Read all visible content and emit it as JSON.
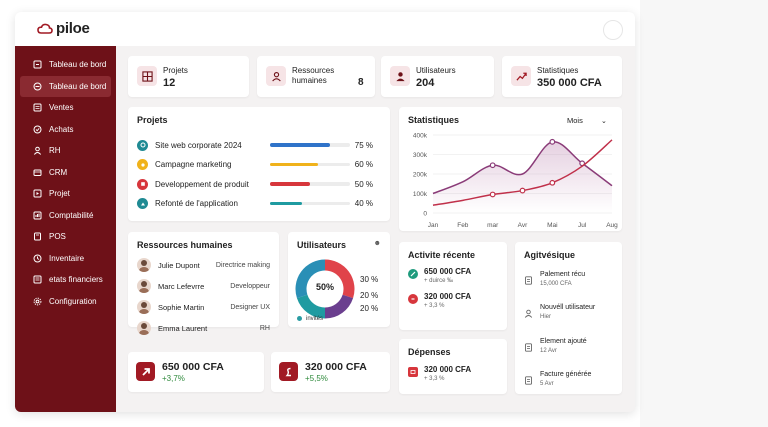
{
  "app": {
    "logo_text": "piloe"
  },
  "sidebar": {
    "items": [
      {
        "label": "Tableau de bord",
        "icon": "dashboard-icon"
      },
      {
        "label": "Tableau de bord",
        "icon": "clock-icon",
        "active": true
      },
      {
        "label": "Ventes",
        "icon": "sales-icon"
      },
      {
        "label": "Achats",
        "icon": "purchase-icon"
      },
      {
        "label": "RH",
        "icon": "user-icon"
      },
      {
        "label": "CRM",
        "icon": "crm-icon"
      },
      {
        "label": "Projet",
        "icon": "project-icon"
      },
      {
        "label": "Comptabilité",
        "icon": "accounting-icon"
      },
      {
        "label": "POS",
        "icon": "pos-icon"
      },
      {
        "label": "Inventaire",
        "icon": "inventory-icon"
      },
      {
        "label": "etats financiers",
        "icon": "reports-icon"
      },
      {
        "label": "Configuration",
        "icon": "gear-icon"
      }
    ]
  },
  "stats": {
    "projets": {
      "label": "Projets",
      "value": "12"
    },
    "rh": {
      "label": "Ressources humaines",
      "value": "8"
    },
    "utilisateurs": {
      "label": "Utilisateurs",
      "value": "204"
    },
    "statistiques": {
      "label": "Statistiques",
      "value": "350 000 CFA"
    }
  },
  "projects": {
    "title": "Projets",
    "items": [
      {
        "name": "Site web corporate 2024",
        "percent": "75 %",
        "progress": 0.75,
        "color": "#2f73c9",
        "icon_bg": "#1f8a93"
      },
      {
        "name": "Campagne marketing",
        "percent": "60 %",
        "progress": 0.6,
        "color": "#f0b21b",
        "icon_bg": "#f0b21b"
      },
      {
        "name": "Developpement de produit",
        "percent": "50 %",
        "progress": 0.5,
        "color": "#d7363c",
        "icon_bg": "#d7363c"
      },
      {
        "name": "Refonté de l'application",
        "percent": "40 %",
        "progress": 0.4,
        "color": "#1f9ba1",
        "icon_bg": "#1f8a93"
      }
    ]
  },
  "statistics_chart": {
    "title": "Statistiques",
    "period": "Mois"
  },
  "chart_data": {
    "type": "line",
    "x": [
      "Jan",
      "Feb",
      "mar",
      "Avr",
      "Mai",
      "Jul",
      "Aug"
    ],
    "yticks": [
      "400k",
      "300k",
      "200k",
      "100k",
      "0"
    ],
    "ylim": [
      0,
      400000
    ],
    "series": [
      {
        "color": "#8a3b78",
        "values": [
          100000,
          160000,
          245000,
          200000,
          365000,
          255000,
          140000
        ]
      },
      {
        "color": "#c0304a",
        "values": [
          40000,
          65000,
          95000,
          115000,
          155000,
          240000,
          375000
        ]
      }
    ],
    "grid": true
  },
  "hr": {
    "title": "Ressources humaines",
    "people": [
      {
        "name": "Julie Dupont",
        "role": "Directrice making"
      },
      {
        "name": "Marc Lefevrre",
        "role": "Developpeur"
      },
      {
        "name": "Sophie Martin",
        "role": "Designer UX"
      },
      {
        "name": "Emma Laurent",
        "role": "RH"
      }
    ]
  },
  "users_donut": {
    "title": "Utilisateurs",
    "center": "50%",
    "labels": [
      "30 %",
      "20 %",
      "20 %"
    ],
    "legend": "invités",
    "segments": [
      {
        "fraction": 0.3,
        "color": "#e0434a"
      },
      {
        "fraction": 0.2,
        "color": "#6b3f8f"
      },
      {
        "fraction": 0.2,
        "color": "#1f9ba1"
      },
      {
        "fraction": 0.3,
        "color": "#2a8fb6"
      }
    ]
  },
  "money": [
    {
      "value": "650 000 CFA",
      "delta": "+3,7%"
    },
    {
      "value": "320 000 CFA",
      "delta": "+5,5%"
    }
  ],
  "activity": {
    "title": "Activite récente",
    "items": [
      {
        "value": "650 000 CFA",
        "sub": "+ duirce ‰",
        "color": "#1f9b7d"
      },
      {
        "value": "320 000 CFA",
        "sub": "+ 3,3 %",
        "color": "#d7363c"
      }
    ]
  },
  "expenses": {
    "title": "Dépenses",
    "items": [
      {
        "value": "320 000 CFA",
        "sub": "+ 3,3 %"
      }
    ]
  },
  "agitvesique": {
    "title": "Agitvésique",
    "items": [
      {
        "label": "Palement récu",
        "sub": "15,000 CFA"
      },
      {
        "label": "Nouvéll utilisateur",
        "sub": "Hier"
      },
      {
        "label": "Element ajouté",
        "sub": "12 Avr"
      },
      {
        "label": "Facture générée",
        "sub": "5 Avr"
      }
    ]
  }
}
